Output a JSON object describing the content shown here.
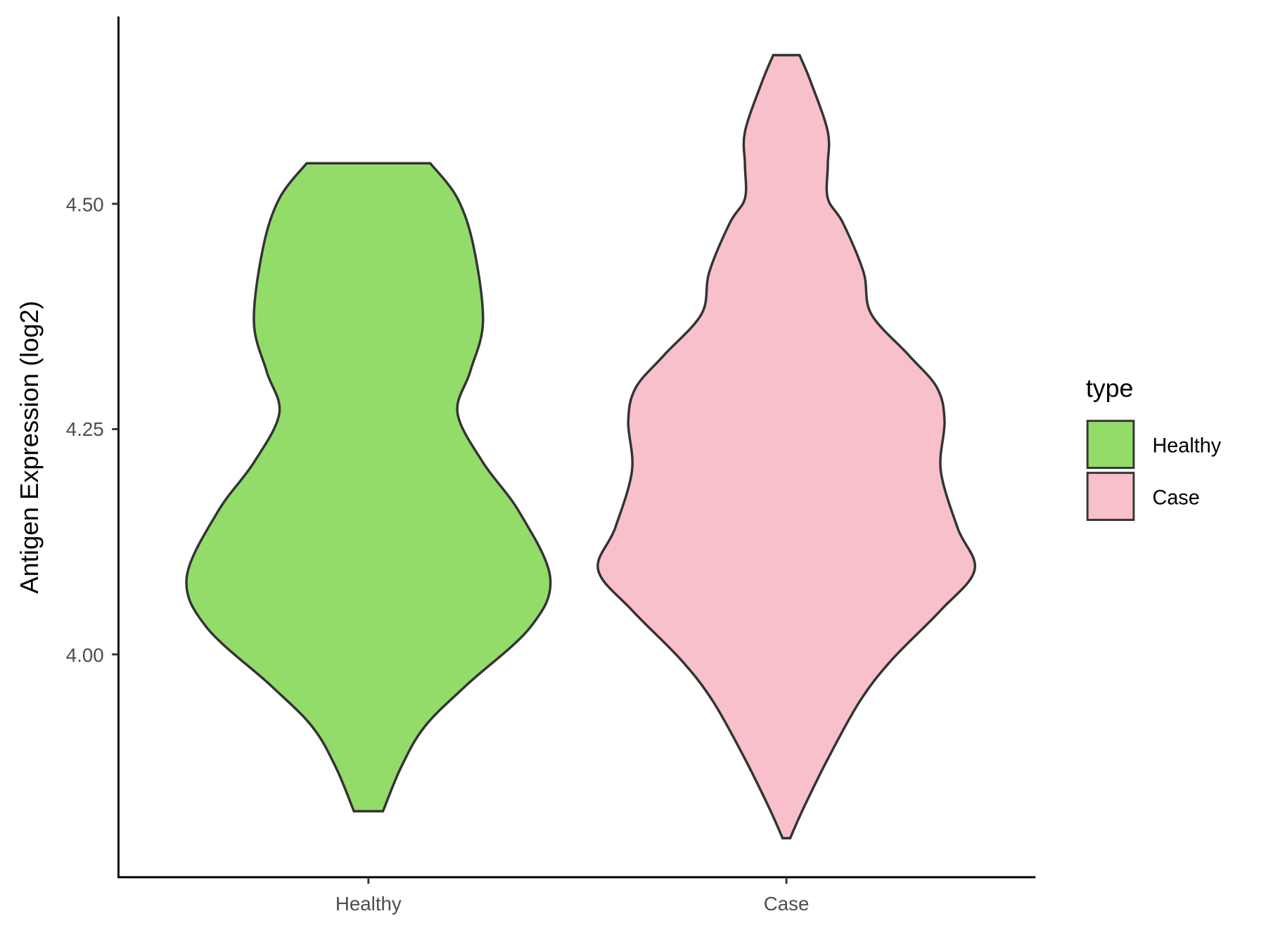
{
  "chart_data": {
    "type": "violin",
    "title": "",
    "xlabel": "",
    "ylabel": "Antigen Expression (log2)",
    "categories": [
      "Healthy",
      "Case"
    ],
    "ylim": [
      3.76,
      4.71
    ],
    "yticks": [
      4.0,
      4.25,
      4.5
    ],
    "ytick_labels": [
      "4.00",
      "4.25",
      "4.50"
    ],
    "grid": false,
    "legend": {
      "title": "type",
      "position": "right",
      "entries": [
        "Healthy",
        "Case"
      ]
    },
    "series": [
      {
        "name": "Healthy",
        "color": "#93DC6A",
        "min": 3.826,
        "max": 4.545,
        "density_profile": {
          "y": [
            4.545,
            4.506,
            4.451,
            4.369,
            4.314,
            4.268,
            4.213,
            4.158,
            4.085,
            4.03,
            3.966,
            3.92,
            3.875,
            3.826
          ],
          "relative_width": [
            0.34,
            0.49,
            0.58,
            0.63,
            0.56,
            0.49,
            0.63,
            0.83,
            1.0,
            0.89,
            0.54,
            0.31,
            0.18,
            0.08
          ]
        }
      },
      {
        "name": "Case",
        "color": "#F7C0CB",
        "min": 3.796,
        "max": 4.665,
        "density_profile": {
          "y": [
            4.665,
            4.635,
            4.58,
            4.543,
            4.506,
            4.479,
            4.424,
            4.378,
            4.332,
            4.296,
            4.259,
            4.204,
            4.14,
            4.094,
            4.049,
            3.994,
            3.948,
            3.884,
            3.829,
            3.796
          ],
          "relative_width": [
            0.07,
            0.13,
            0.22,
            0.22,
            0.22,
            0.3,
            0.41,
            0.45,
            0.65,
            0.8,
            0.84,
            0.82,
            0.91,
            1.0,
            0.82,
            0.56,
            0.39,
            0.22,
            0.09,
            0.02
          ]
        }
      }
    ],
    "outline_color": "#333333"
  }
}
